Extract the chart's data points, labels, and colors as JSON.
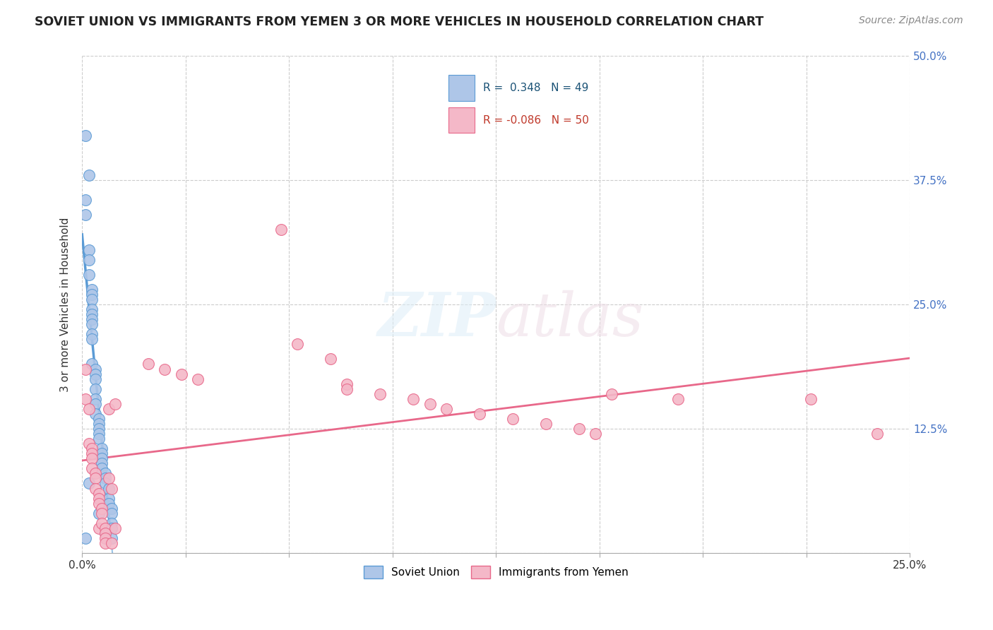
{
  "title": "SOVIET UNION VS IMMIGRANTS FROM YEMEN 3 OR MORE VEHICLES IN HOUSEHOLD CORRELATION CHART",
  "source": "Source: ZipAtlas.com",
  "ylabel": "3 or more Vehicles in Household",
  "xlim": [
    0.0,
    0.25
  ],
  "ylim": [
    0.0,
    0.5
  ],
  "xticks": [
    0.0,
    0.03125,
    0.0625,
    0.09375,
    0.125,
    0.15625,
    0.1875,
    0.21875,
    0.25
  ],
  "yticks": [
    0.0,
    0.125,
    0.25,
    0.375,
    0.5
  ],
  "blue_color": "#5b9bd5",
  "blue_fill": "#aec6e8",
  "pink_color": "#e8688a",
  "pink_fill": "#f4b8c8",
  "R_blue": 0.348,
  "N_blue": 49,
  "R_pink": -0.086,
  "N_pink": 50,
  "blue_x": [
    0.001,
    0.001,
    0.001,
    0.001,
    0.002,
    0.002,
    0.002,
    0.002,
    0.002,
    0.003,
    0.003,
    0.003,
    0.003,
    0.003,
    0.003,
    0.003,
    0.003,
    0.003,
    0.003,
    0.004,
    0.004,
    0.004,
    0.004,
    0.004,
    0.004,
    0.004,
    0.005,
    0.005,
    0.005,
    0.005,
    0.005,
    0.005,
    0.006,
    0.006,
    0.006,
    0.006,
    0.006,
    0.007,
    0.007,
    0.007,
    0.007,
    0.008,
    0.008,
    0.008,
    0.009,
    0.009,
    0.009,
    0.009,
    0.009
  ],
  "blue_y": [
    0.42,
    0.355,
    0.34,
    0.015,
    0.38,
    0.305,
    0.295,
    0.28,
    0.07,
    0.265,
    0.26,
    0.255,
    0.245,
    0.24,
    0.235,
    0.23,
    0.22,
    0.215,
    0.19,
    0.185,
    0.18,
    0.175,
    0.165,
    0.155,
    0.15,
    0.14,
    0.135,
    0.13,
    0.125,
    0.12,
    0.115,
    0.04,
    0.105,
    0.1,
    0.095,
    0.09,
    0.085,
    0.08,
    0.075,
    0.07,
    0.02,
    0.065,
    0.055,
    0.05,
    0.045,
    0.04,
    0.03,
    0.025,
    0.015
  ],
  "pink_x": [
    0.001,
    0.001,
    0.002,
    0.002,
    0.003,
    0.003,
    0.003,
    0.003,
    0.004,
    0.004,
    0.004,
    0.005,
    0.005,
    0.005,
    0.005,
    0.006,
    0.006,
    0.006,
    0.007,
    0.007,
    0.007,
    0.007,
    0.008,
    0.008,
    0.009,
    0.009,
    0.01,
    0.01,
    0.02,
    0.025,
    0.03,
    0.035,
    0.06,
    0.065,
    0.075,
    0.08,
    0.08,
    0.09,
    0.1,
    0.105,
    0.11,
    0.12,
    0.13,
    0.14,
    0.15,
    0.155,
    0.16,
    0.18,
    0.22,
    0.24
  ],
  "pink_y": [
    0.185,
    0.155,
    0.145,
    0.11,
    0.105,
    0.1,
    0.095,
    0.085,
    0.08,
    0.075,
    0.065,
    0.06,
    0.055,
    0.05,
    0.025,
    0.045,
    0.04,
    0.03,
    0.025,
    0.02,
    0.015,
    0.01,
    0.145,
    0.075,
    0.065,
    0.01,
    0.025,
    0.15,
    0.19,
    0.185,
    0.18,
    0.175,
    0.325,
    0.21,
    0.195,
    0.17,
    0.165,
    0.16,
    0.155,
    0.15,
    0.145,
    0.14,
    0.135,
    0.13,
    0.125,
    0.12,
    0.16,
    0.155,
    0.155,
    0.12
  ]
}
